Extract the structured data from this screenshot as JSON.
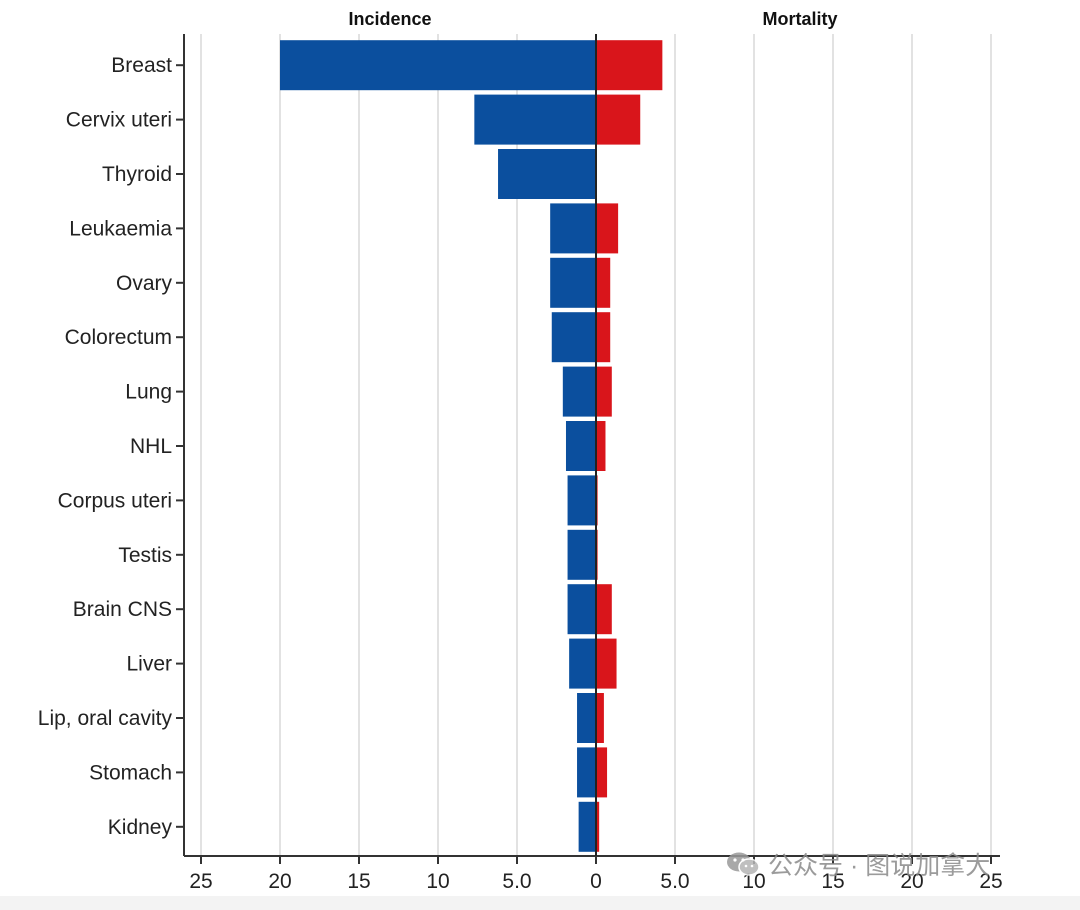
{
  "chart_data": {
    "type": "bar",
    "orientation": "horizontal-diverging",
    "panels": [
      "Incidence",
      "Mortality"
    ],
    "categories": [
      "Breast",
      "Cervix uteri",
      "Thyroid",
      "Leukaemia",
      "Ovary",
      "Colorectum",
      "Lung",
      "NHL",
      "Corpus uteri",
      "Testis",
      "Brain CNS",
      "Liver",
      "Lip, oral cavity",
      "Stomach",
      "Kidney"
    ],
    "series": [
      {
        "name": "Incidence",
        "color": "#0b4f9e",
        "values": [
          20.0,
          7.7,
          6.2,
          2.9,
          2.9,
          2.8,
          2.1,
          1.9,
          1.8,
          1.8,
          1.8,
          1.7,
          1.2,
          1.2,
          1.1
        ]
      },
      {
        "name": "Mortality",
        "color": "#d9151b",
        "values": [
          4.2,
          2.8,
          0.0,
          1.4,
          0.9,
          0.9,
          1.0,
          0.6,
          0.1,
          0.1,
          1.0,
          1.3,
          0.5,
          0.7,
          0.2
        ]
      }
    ],
    "xticks": {
      "left": [
        "25",
        "20",
        "15",
        "10",
        "5.0",
        "0"
      ],
      "right": [
        "5.0",
        "10",
        "15",
        "20",
        "25"
      ]
    },
    "xlim": [
      -25,
      25
    ],
    "grid": true
  },
  "watermark": {
    "text": "公众号 · 图说加拿大",
    "icon": "wechat-icon"
  }
}
